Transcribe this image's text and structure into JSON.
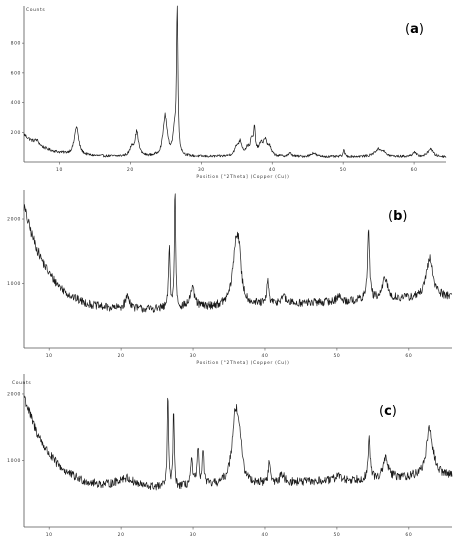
{
  "figure": {
    "panels": [
      {
        "id": "a",
        "label_open": "(",
        "label_letter": "a",
        "label_close": ")"
      },
      {
        "id": "b",
        "label_open": "(",
        "label_letter": "b",
        "label_close": ")"
      },
      {
        "id": "c",
        "label_open": "(",
        "label_letter": "c",
        "label_close": ")"
      }
    ]
  },
  "chart_data": [
    {
      "type": "line",
      "panel": "(a)",
      "xlabel": "Position [°2Theta] (Copper (Cu))",
      "xlim": [
        5,
        64.5
      ],
      "ylim": [
        0,
        1050
      ],
      "x_ticks": [
        10,
        20,
        30,
        40,
        50,
        60
      ],
      "x_tick_labels": [
        "10",
        "20",
        "30",
        "40",
        "50",
        "60"
      ],
      "y_ticks": [
        200,
        400,
        600,
        800
      ],
      "y_tick_labels": [
        "200",
        "400",
        "600",
        "800"
      ],
      "y_top_label": "Counts",
      "background": {
        "amplitude": 150,
        "decay": 3,
        "floor": 35,
        "late_rise": 0,
        "noise": 8
      },
      "peaks": [
        {
          "x": 6.8,
          "y": 30,
          "w": 0.4
        },
        {
          "x": 12.4,
          "y": 190,
          "w": 0.35
        },
        {
          "x": 20.2,
          "y": 60,
          "w": 0.3
        },
        {
          "x": 20.9,
          "y": 160,
          "w": 0.3
        },
        {
          "x": 24.9,
          "y": 270,
          "w": 0.35
        },
        {
          "x": 26.2,
          "y": 140,
          "w": 0.25
        },
        {
          "x": 26.6,
          "y": 1000,
          "w": 0.12
        },
        {
          "x": 35.0,
          "y": 55,
          "w": 0.4
        },
        {
          "x": 35.5,
          "y": 80,
          "w": 0.3
        },
        {
          "x": 36.5,
          "y": 45,
          "w": 0.3
        },
        {
          "x": 37.1,
          "y": 95,
          "w": 0.25
        },
        {
          "x": 37.5,
          "y": 160,
          "w": 0.15
        },
        {
          "x": 38.4,
          "y": 70,
          "w": 0.4
        },
        {
          "x": 39.0,
          "y": 90,
          "w": 0.3
        },
        {
          "x": 39.6,
          "y": 55,
          "w": 0.3
        },
        {
          "x": 42.5,
          "y": 20,
          "w": 0.3
        },
        {
          "x": 45.8,
          "y": 25,
          "w": 0.4
        },
        {
          "x": 50.1,
          "y": 40,
          "w": 0.15
        },
        {
          "x": 54.9,
          "y": 45,
          "w": 0.6
        },
        {
          "x": 55.6,
          "y": 25,
          "w": 0.4
        },
        {
          "x": 60.0,
          "y": 30,
          "w": 0.3
        },
        {
          "x": 62.3,
          "y": 55,
          "w": 0.4
        }
      ]
    },
    {
      "type": "line",
      "panel": "(b)",
      "xlabel": "Position [°2Theta] (Copper (Cu))",
      "xlim": [
        6.5,
        66
      ],
      "ylim": [
        0,
        2450
      ],
      "x_ticks": [
        10,
        20,
        30,
        40,
        50,
        60
      ],
      "x_tick_labels": [
        "10",
        "20",
        "30",
        "40",
        "50",
        "60"
      ],
      "y_ticks": [
        1000,
        2000
      ],
      "y_tick_labels": [
        "1000",
        "2000"
      ],
      "background": {
        "amplitude": 1700,
        "decay": 3.6,
        "floor": 500,
        "late_rise": 5,
        "noise": 60
      },
      "peaks": [
        {
          "x": 20.9,
          "y": 200,
          "w": 0.4
        },
        {
          "x": 26.7,
          "y": 950,
          "w": 0.12
        },
        {
          "x": 27.5,
          "y": 1900,
          "w": 0.1
        },
        {
          "x": 29.9,
          "y": 280,
          "w": 0.4
        },
        {
          "x": 36.0,
          "y": 950,
          "w": 0.55
        },
        {
          "x": 36.4,
          "y": 400,
          "w": 0.3
        },
        {
          "x": 40.4,
          "y": 380,
          "w": 0.15
        },
        {
          "x": 42.5,
          "y": 120,
          "w": 0.4
        },
        {
          "x": 50.2,
          "y": 90,
          "w": 0.3
        },
        {
          "x": 54.4,
          "y": 1050,
          "w": 0.18
        },
        {
          "x": 56.7,
          "y": 330,
          "w": 0.4
        },
        {
          "x": 62.9,
          "y": 600,
          "w": 0.55
        }
      ]
    },
    {
      "type": "line",
      "panel": "(c)",
      "xlabel": "",
      "xlim": [
        6.5,
        66
      ],
      "ylim": [
        0,
        2300
      ],
      "x_ticks": [
        10,
        20,
        30,
        40,
        50,
        60
      ],
      "x_tick_labels": [
        "10",
        "20",
        "30",
        "40",
        "50",
        "60"
      ],
      "y_ticks": [
        1000,
        2000
      ],
      "y_tick_labels": [
        "1000",
        "2000"
      ],
      "y_top_label": "Counts",
      "background": {
        "amplitude": 1500,
        "decay": 3.8,
        "floor": 480,
        "late_rise": 5,
        "noise": 60
      },
      "peaks": [
        {
          "x": 20.6,
          "y": 150,
          "w": 1.5
        },
        {
          "x": 26.5,
          "y": 1450,
          "w": 0.1
        },
        {
          "x": 27.3,
          "y": 1200,
          "w": 0.1
        },
        {
          "x": 29.8,
          "y": 350,
          "w": 0.2
        },
        {
          "x": 30.7,
          "y": 520,
          "w": 0.15
        },
        {
          "x": 31.4,
          "y": 480,
          "w": 0.15
        },
        {
          "x": 35.9,
          "y": 1100,
          "w": 0.55
        },
        {
          "x": 36.5,
          "y": 400,
          "w": 0.3
        },
        {
          "x": 40.6,
          "y": 320,
          "w": 0.15
        },
        {
          "x": 42.4,
          "y": 120,
          "w": 0.4
        },
        {
          "x": 50.1,
          "y": 100,
          "w": 0.3
        },
        {
          "x": 54.5,
          "y": 620,
          "w": 0.15
        },
        {
          "x": 56.8,
          "y": 300,
          "w": 0.4
        },
        {
          "x": 62.9,
          "y": 700,
          "w": 0.55
        }
      ]
    }
  ]
}
